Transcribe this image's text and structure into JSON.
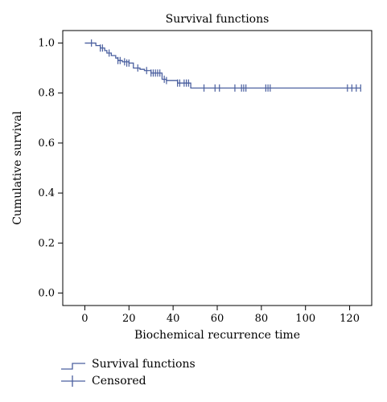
{
  "chart_data": {
    "type": "line",
    "title": "Survival functions",
    "xlabel": "Biochemical recurrence time",
    "ylabel": "Cumulative survival",
    "xlim": [
      -10,
      130
    ],
    "ylim": [
      -0.05,
      1.05
    ],
    "x_ticks": [
      0,
      20,
      40,
      60,
      80,
      100,
      120
    ],
    "y_ticks": [
      "0.0",
      "0.2",
      "0.4",
      "0.6",
      "0.8",
      "1.0"
    ],
    "grid": false,
    "legend_position": "bottom-left",
    "line_color": "#4a5f9f",
    "series": [
      {
        "name": "Survival functions",
        "step": true,
        "x": [
          0,
          5,
          7,
          9,
          10,
          12,
          14,
          15,
          17,
          20,
          22,
          25,
          27,
          30,
          35,
          37,
          42,
          48,
          125
        ],
        "values": [
          1.0,
          0.99,
          0.98,
          0.97,
          0.96,
          0.95,
          0.94,
          0.93,
          0.925,
          0.92,
          0.9,
          0.895,
          0.89,
          0.88,
          0.855,
          0.85,
          0.84,
          0.82,
          0.82
        ]
      }
    ],
    "censored": {
      "name": "Censored",
      "points": [
        [
          3,
          1.0
        ],
        [
          7,
          0.98
        ],
        [
          8,
          0.98
        ],
        [
          11,
          0.96
        ],
        [
          15,
          0.93
        ],
        [
          16,
          0.93
        ],
        [
          18,
          0.925
        ],
        [
          19,
          0.92
        ],
        [
          20,
          0.92
        ],
        [
          24,
          0.9
        ],
        [
          28,
          0.89
        ],
        [
          30,
          0.88
        ],
        [
          31,
          0.88
        ],
        [
          32,
          0.88
        ],
        [
          33,
          0.88
        ],
        [
          34,
          0.88
        ],
        [
          36,
          0.855
        ],
        [
          37,
          0.85
        ],
        [
          42,
          0.84
        ],
        [
          43,
          0.84
        ],
        [
          45,
          0.84
        ],
        [
          46,
          0.84
        ],
        [
          47,
          0.84
        ],
        [
          54,
          0.82
        ],
        [
          59,
          0.82
        ],
        [
          61,
          0.82
        ],
        [
          68,
          0.82
        ],
        [
          71,
          0.82
        ],
        [
          72,
          0.82
        ],
        [
          73,
          0.82
        ],
        [
          82,
          0.82
        ],
        [
          83,
          0.82
        ],
        [
          84,
          0.82
        ],
        [
          119,
          0.82
        ],
        [
          121,
          0.82
        ],
        [
          123,
          0.82
        ],
        [
          125,
          0.82
        ]
      ]
    }
  }
}
